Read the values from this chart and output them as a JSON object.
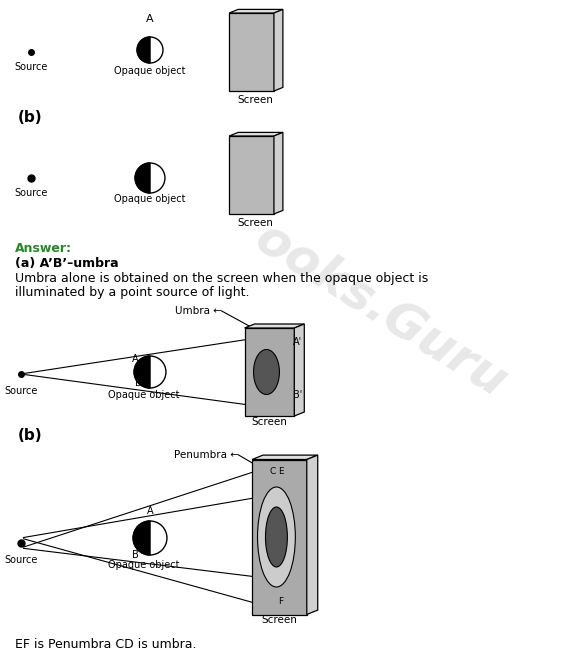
{
  "bg_color": "#ffffff",
  "watermark_color": "#cccccc",
  "watermark_fontsize": 36,
  "answer_color": "#228B22",
  "part_a_answer": "(a) A’B’–umbra",
  "body_text_1": "Umbra alone is obtained on the screen when the opaque object is",
  "body_text_2": "illuminated by a point source of light.",
  "bottom_text": "EF is Penumbra CD is umbra."
}
